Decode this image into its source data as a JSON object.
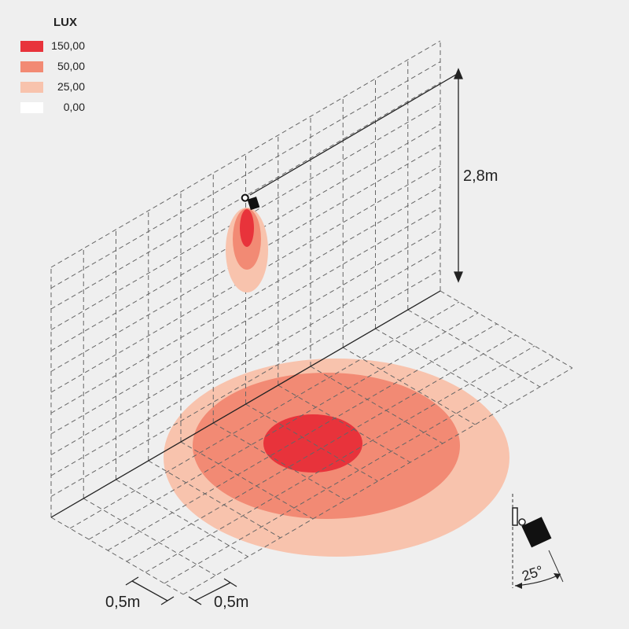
{
  "legend": {
    "title": "LUX",
    "items": [
      {
        "value": "150,00",
        "color": "#e8333b"
      },
      {
        "value": "50,00",
        "color": "#f28a74"
      },
      {
        "value": "25,00",
        "color": "#f8c3ad"
      },
      {
        "value": "0,00",
        "color": "#ffffff"
      }
    ]
  },
  "dimensions": {
    "mount_height": "2,8m",
    "grid_step_a": "0,5m",
    "grid_step_b": "0,5m",
    "beam_angle": "25°"
  },
  "colors": {
    "high": "#e8333b",
    "medium": "#f28a74",
    "low": "#f8c3ad",
    "grid": "#666666",
    "line": "#222222",
    "background": "#efefef"
  },
  "icons": [
    "spotlight-fixture-icon",
    "fixture-side-view-icon"
  ]
}
